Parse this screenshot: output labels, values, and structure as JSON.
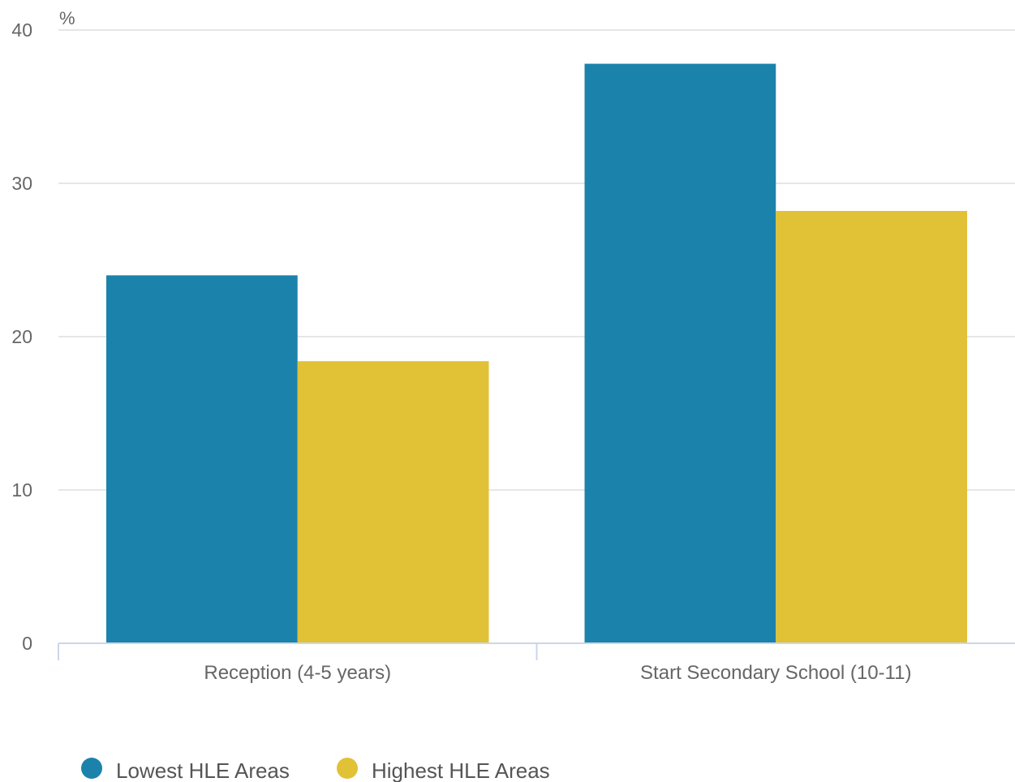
{
  "chart_data": {
    "type": "bar",
    "categories": [
      "Reception (4-5 years)",
      "Start Secondary School (10-11)"
    ],
    "series": [
      {
        "name": "Lowest HLE Areas",
        "values": [
          24.0,
          37.8
        ],
        "color": "#1b83ab"
      },
      {
        "name": "Highest HLE Areas",
        "values": [
          18.4,
          28.2
        ],
        "color": "#e1c136"
      }
    ],
    "ylabel": "%",
    "ylim": [
      0,
      40
    ],
    "yticks": [
      0,
      10,
      20,
      30,
      40
    ],
    "grid": true,
    "legend": "bottom-left"
  }
}
